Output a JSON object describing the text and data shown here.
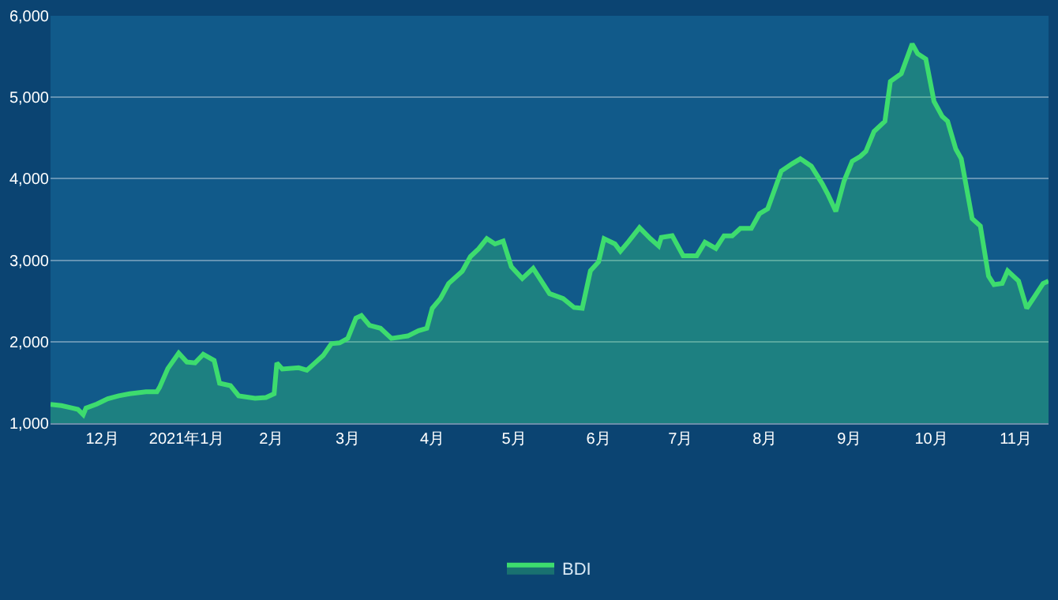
{
  "chart_data": {
    "type": "area",
    "x": [
      "2020-11-12",
      "2020-11-16",
      "2020-11-20",
      "2020-11-22",
      "2020-11-24",
      "2020-11-25",
      "2020-11-29",
      "2020-12-03",
      "2020-12-07",
      "2020-12-11",
      "2020-12-17",
      "2020-12-21",
      "2020-12-22",
      "2020-12-25",
      "2020-12-29",
      "2021-01-01",
      "2021-01-04",
      "2021-01-07",
      "2021-01-11",
      "2021-01-13",
      "2021-01-17",
      "2021-01-20",
      "2021-01-26",
      "2021-01-30",
      "2021-02-02",
      "2021-02-03",
      "2021-02-05",
      "2021-02-11",
      "2021-02-14",
      "2021-02-17",
      "2021-02-20",
      "2021-02-23",
      "2021-02-26",
      "2021-03-01",
      "2021-03-04",
      "2021-03-06",
      "2021-03-09",
      "2021-03-13",
      "2021-03-17",
      "2021-03-23",
      "2021-03-27",
      "2021-03-30",
      "2021-04-01",
      "2021-04-04",
      "2021-04-07",
      "2021-04-10",
      "2021-04-12",
      "2021-04-15",
      "2021-04-18",
      "2021-04-21",
      "2021-04-24",
      "2021-04-27",
      "2021-04-30",
      "2021-05-04",
      "2021-05-08",
      "2021-05-14",
      "2021-05-19",
      "2021-05-23",
      "2021-05-26",
      "2021-05-29",
      "2021-06-01",
      "2021-06-03",
      "2021-06-07",
      "2021-06-09",
      "2021-06-12",
      "2021-06-16",
      "2021-06-20",
      "2021-06-23",
      "2021-06-24",
      "2021-06-28",
      "2021-07-02",
      "2021-07-07",
      "2021-07-10",
      "2021-07-14",
      "2021-07-17",
      "2021-07-20",
      "2021-07-23",
      "2021-07-27",
      "2021-07-30",
      "2021-08-02",
      "2021-08-07",
      "2021-08-11",
      "2021-08-14",
      "2021-08-18",
      "2021-08-22",
      "2021-08-24",
      "2021-08-27",
      "2021-08-30",
      "2021-09-02",
      "2021-09-05",
      "2021-09-07",
      "2021-09-10",
      "2021-09-14",
      "2021-09-16",
      "2021-09-20",
      "2021-09-24",
      "2021-09-26",
      "2021-09-29",
      "2021-10-02",
      "2021-10-05",
      "2021-10-07",
      "2021-10-10",
      "2021-10-12",
      "2021-10-16",
      "2021-10-19",
      "2021-10-22",
      "2021-10-24",
      "2021-10-27",
      "2021-10-29",
      "2021-11-02",
      "2021-11-05",
      "2021-11-08",
      "2021-11-11",
      "2021-11-13"
    ],
    "series": [
      {
        "name": "BDI",
        "color": "#3ddc6e",
        "values": [
          1230,
          1215,
          1185,
          1170,
          1105,
          1185,
          1235,
          1300,
          1335,
          1360,
          1385,
          1385,
          1440,
          1670,
          1860,
          1750,
          1740,
          1845,
          1770,
          1490,
          1460,
          1335,
          1305,
          1315,
          1360,
          1740,
          1665,
          1680,
          1650,
          1740,
          1830,
          1975,
          1985,
          2040,
          2290,
          2320,
          2200,
          2165,
          2040,
          2070,
          2135,
          2165,
          2410,
          2530,
          2715,
          2805,
          2865,
          3045,
          3140,
          3265,
          3200,
          3235,
          2920,
          2775,
          2900,
          2590,
          2530,
          2420,
          2410,
          2870,
          2980,
          3265,
          3200,
          3110,
          3230,
          3400,
          3265,
          3175,
          3280,
          3300,
          3055,
          3055,
          3220,
          3145,
          3300,
          3300,
          3390,
          3390,
          3570,
          3630,
          4095,
          4185,
          4245,
          4155,
          3940,
          3815,
          3600,
          3970,
          4215,
          4275,
          4335,
          4580,
          4705,
          5195,
          5290,
          5655,
          5535,
          5470,
          4950,
          4765,
          4705,
          4365,
          4245,
          3510,
          3420,
          2805,
          2700,
          2715,
          2870,
          2745,
          2410,
          2560,
          2715,
          2745
        ]
      }
    ],
    "xlim": [
      "2020-11-12",
      "2021-11-13"
    ],
    "xticks": [
      {
        "value": "2020-12-01",
        "label": "12月"
      },
      {
        "value": "2021-01-01",
        "label": "2021年1月"
      },
      {
        "value": "2021-02-01",
        "label": "2月"
      },
      {
        "value": "2021-03-01",
        "label": "3月"
      },
      {
        "value": "2021-04-01",
        "label": "4月"
      },
      {
        "value": "2021-05-01",
        "label": "5月"
      },
      {
        "value": "2021-06-01",
        "label": "6月"
      },
      {
        "value": "2021-07-01",
        "label": "7月"
      },
      {
        "value": "2021-08-01",
        "label": "8月"
      },
      {
        "value": "2021-09-01",
        "label": "9月"
      },
      {
        "value": "2021-10-01",
        "label": "10月"
      },
      {
        "value": "2021-11-01",
        "label": "11月"
      }
    ],
    "ylim": [
      1000,
      6000
    ],
    "yticks": [
      {
        "value": 1000,
        "label": "1,000"
      },
      {
        "value": 2000,
        "label": "2,000"
      },
      {
        "value": 3000,
        "label": "3,000"
      },
      {
        "value": 4000,
        "label": "4,000"
      },
      {
        "value": 5000,
        "label": "5,000"
      },
      {
        "value": 6000,
        "label": "6,000"
      }
    ],
    "grid": "y",
    "legend": "bottom",
    "marker": "none"
  }
}
